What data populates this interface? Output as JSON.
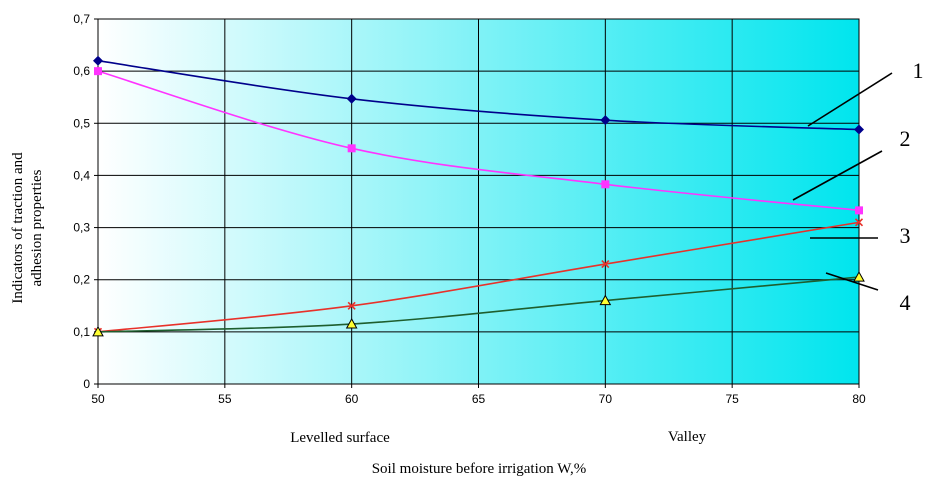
{
  "chart_data": {
    "type": "line",
    "title": "",
    "xlabel": "Soil moisture before irrigation W,%",
    "ylabel": [
      "Indicators of traction and",
      "adhesion properties"
    ],
    "x_ticks": [
      "50",
      "55",
      "60",
      "65",
      "70",
      "75",
      "80"
    ],
    "y_ticks": [
      "0",
      "0,1",
      "0,2",
      "0,3",
      "0,4",
      "0,5",
      "0,6",
      "0,7"
    ],
    "xlim": [
      50,
      80
    ],
    "ylim": [
      0,
      0.7
    ],
    "grid": true,
    "x_captions": [
      {
        "text": "Levelled surface",
        "x": 60
      },
      {
        "text": "Valley",
        "x": 70
      }
    ],
    "series": [
      {
        "x": [
          50,
          60,
          70,
          80
        ],
        "values": [
          0.62,
          0.547,
          0.506,
          0.488
        ],
        "color": "#00008b",
        "marker": "diamond",
        "callout": "1"
      },
      {
        "x": [
          50,
          60,
          70,
          80
        ],
        "values": [
          0.6,
          0.452,
          0.383,
          0.333
        ],
        "color": "#ff33ff",
        "marker": "square",
        "callout": "2"
      },
      {
        "x": [
          50,
          60,
          70,
          80
        ],
        "values": [
          0.1,
          0.15,
          0.23,
          0.31
        ],
        "color": "#e8312a",
        "marker": "cross",
        "callout": "3"
      },
      {
        "x": [
          50,
          60,
          70,
          80
        ],
        "values": [
          0.1,
          0.115,
          0.16,
          0.205
        ],
        "color": "#1e5e2e",
        "marker": "triangle",
        "callout": "4"
      }
    ],
    "colors": {
      "background_from": "#ffffff",
      "background_to": "#00e5ee",
      "grid": "#000000"
    }
  }
}
